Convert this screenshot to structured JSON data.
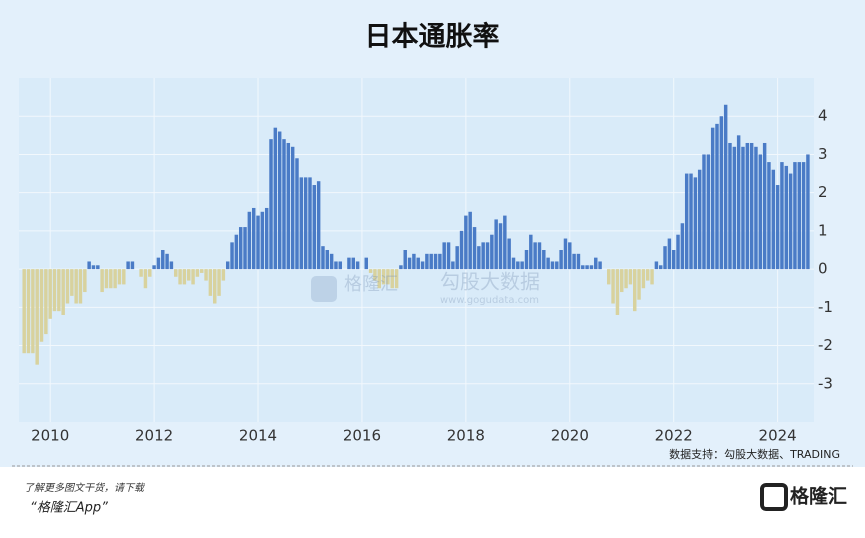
{
  "chart_data": {
    "type": "bar",
    "title": "日本通胀率",
    "x": [
      2009.5,
      2009.583,
      2009.667,
      2009.75,
      2009.833,
      2009.917,
      2010,
      2010.083,
      2010.167,
      2010.25,
      2010.333,
      2010.417,
      2010.5,
      2010.583,
      2010.667,
      2010.75,
      2010.833,
      2010.917,
      2011,
      2011.083,
      2011.167,
      2011.25,
      2011.333,
      2011.417,
      2011.5,
      2011.583,
      2011.667,
      2011.75,
      2011.833,
      2011.917,
      2012,
      2012.083,
      2012.167,
      2012.25,
      2012.333,
      2012.417,
      2012.5,
      2012.583,
      2012.667,
      2012.75,
      2012.833,
      2012.917,
      2013,
      2013.083,
      2013.167,
      2013.25,
      2013.333,
      2013.417,
      2013.5,
      2013.583,
      2013.667,
      2013.75,
      2013.833,
      2013.917,
      2014,
      2014.083,
      2014.167,
      2014.25,
      2014.333,
      2014.417,
      2014.5,
      2014.583,
      2014.667,
      2014.75,
      2014.833,
      2014.917,
      2015,
      2015.083,
      2015.167,
      2015.25,
      2015.333,
      2015.417,
      2015.5,
      2015.583,
      2015.667,
      2015.75,
      2015.833,
      2015.917,
      2016,
      2016.083,
      2016.167,
      2016.25,
      2016.333,
      2016.417,
      2016.5,
      2016.583,
      2016.667,
      2016.75,
      2016.833,
      2016.917,
      2017,
      2017.083,
      2017.167,
      2017.25,
      2017.333,
      2017.417,
      2017.5,
      2017.583,
      2017.667,
      2017.75,
      2017.833,
      2017.917,
      2018,
      2018.083,
      2018.167,
      2018.25,
      2018.333,
      2018.417,
      2018.5,
      2018.583,
      2018.667,
      2018.75,
      2018.833,
      2018.917,
      2019,
      2019.083,
      2019.167,
      2019.25,
      2019.333,
      2019.417,
      2019.5,
      2019.583,
      2019.667,
      2019.75,
      2019.833,
      2019.917,
      2020,
      2020.083,
      2020.167,
      2020.25,
      2020.333,
      2020.417,
      2020.5,
      2020.583,
      2020.667,
      2020.75,
      2020.833,
      2020.917,
      2021,
      2021.083,
      2021.167,
      2021.25,
      2021.333,
      2021.417,
      2021.5,
      2021.583,
      2021.667,
      2021.75,
      2021.833,
      2021.917,
      2022,
      2022.083,
      2022.167,
      2022.25,
      2022.333,
      2022.417,
      2022.5,
      2022.583,
      2022.667,
      2022.75,
      2022.833,
      2022.917,
      2023,
      2023.083,
      2023.167,
      2023.25,
      2023.333,
      2023.417,
      2023.5,
      2023.583,
      2023.667,
      2023.75,
      2023.833,
      2023.917,
      2024,
      2024.083,
      2024.167,
      2024.25,
      2024.333,
      2024.417,
      2024.5,
      2024.583
    ],
    "values": [
      -2.2,
      -2.2,
      -2.2,
      -2.5,
      -1.9,
      -1.7,
      -1.3,
      -1.1,
      -1.1,
      -1.2,
      -0.9,
      -0.7,
      -0.9,
      -0.9,
      -0.6,
      0.2,
      0.1,
      0.1,
      -0.6,
      -0.5,
      -0.5,
      -0.5,
      -0.4,
      -0.4,
      0.2,
      0.2,
      0,
      -0.2,
      -0.5,
      -0.2,
      0.1,
      0.3,
      0.5,
      0.4,
      0.2,
      -0.2,
      -0.4,
      -0.4,
      -0.3,
      -0.4,
      -0.2,
      -0.1,
      -0.3,
      -0.7,
      -0.9,
      -0.7,
      -0.3,
      0.2,
      0.7,
      0.9,
      1.1,
      1.1,
      1.5,
      1.6,
      1.4,
      1.5,
      1.6,
      3.4,
      3.7,
      3.6,
      3.4,
      3.3,
      3.2,
      2.9,
      2.4,
      2.4,
      2.4,
      2.2,
      2.3,
      0.6,
      0.5,
      0.4,
      0.2,
      0.2,
      0,
      0.3,
      0.3,
      0.2,
      0,
      0.3,
      -0.1,
      -0.3,
      -0.5,
      -0.4,
      -0.4,
      -0.5,
      -0.5,
      0.1,
      0.5,
      0.3,
      0.4,
      0.3,
      0.2,
      0.4,
      0.4,
      0.4,
      0.4,
      0.7,
      0.7,
      0.2,
      0.6,
      1,
      1.4,
      1.5,
      1.1,
      0.6,
      0.7,
      0.7,
      0.9,
      1.3,
      1.2,
      1.4,
      0.8,
      0.3,
      0.2,
      0.2,
      0.5,
      0.9,
      0.7,
      0.7,
      0.5,
      0.3,
      0.2,
      0.2,
      0.5,
      0.8,
      0.7,
      0.4,
      0.4,
      0.1,
      0.1,
      0.1,
      0.3,
      0.2,
      0,
      -0.4,
      -0.9,
      -1.2,
      -0.6,
      -0.5,
      -0.4,
      -1.1,
      -0.8,
      -0.5,
      -0.3,
      -0.4,
      0.2,
      0.1,
      0.6,
      0.8,
      0.5,
      0.9,
      1.2,
      2.5,
      2.5,
      2.4,
      2.6,
      3,
      3,
      3.7,
      3.8,
      4,
      4.3,
      3.3,
      3.2,
      3.5,
      3.2,
      3.3,
      3.3,
      3.2,
      3,
      3.3,
      2.8,
      2.6,
      2.2,
      2.8,
      2.7,
      2.5,
      2.8,
      2.8,
      2.8,
      3
    ],
    "positive_color": "#4a7bc6",
    "negative_color": "#d8d29e",
    "xlim": [
      2009.4,
      2024.7
    ],
    "xticks": [
      2010,
      2012,
      2014,
      2016,
      2018,
      2020,
      2022,
      2024
    ],
    "ylim": [
      -4,
      5
    ],
    "yticks": [
      -3,
      -2,
      -1,
      0,
      1,
      2,
      3,
      4
    ],
    "grid": true,
    "source": "数据支持：勾股大数据、TRADING"
  },
  "watermark": {
    "brand": "格隆汇",
    "data": "勾股大数据",
    "url": "www.gogudata.com"
  },
  "footer": {
    "line1": "了解更多图文干货，请下载",
    "line2": "“格隆汇App”",
    "logo": "格隆汇"
  }
}
